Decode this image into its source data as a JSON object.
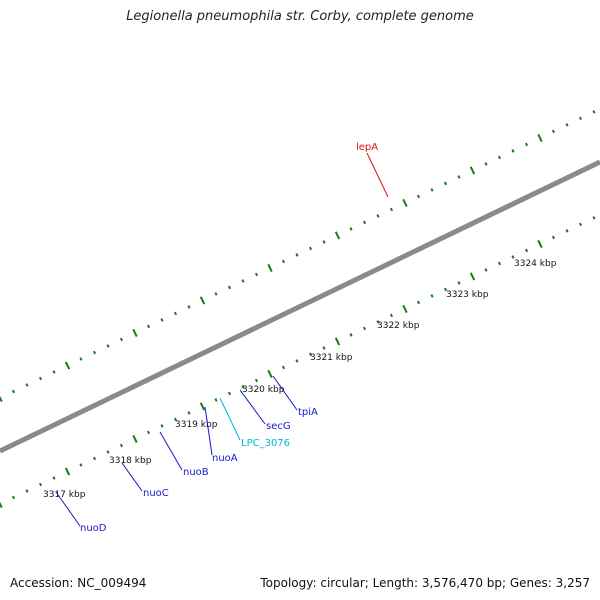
{
  "title": "Legionella pneumophila str. Corby, complete genome",
  "footer": {
    "accession": "Accession: NC_009494",
    "summary": "Topology: circular; Length: 3,576,470 bp; Genes: 3,257"
  },
  "colors": {
    "forward_cds": "#1010e0",
    "forward_gene": "#00d8ee",
    "selected_red": "#ee1111",
    "green_gene": "#8ce03a",
    "backbone": "#888888",
    "tick": "#1a7a1a",
    "label_blue": "#1818cc",
    "label_cyan": "#00b8d8",
    "label_red": "#dd1111"
  },
  "kbp_marks": [
    {
      "text": "3317 kbp"
    },
    {
      "text": "3318 kbp"
    },
    {
      "text": "3319 kbp"
    },
    {
      "text": "3320 kbp"
    },
    {
      "text": "3321 kbp"
    },
    {
      "text": "3322 kbp"
    },
    {
      "text": "3323 kbp"
    },
    {
      "text": "3324 kbp"
    }
  ],
  "gene_labels": [
    {
      "name": "nuoD",
      "color": "label_blue"
    },
    {
      "name": "nuoC",
      "color": "label_blue"
    },
    {
      "name": "nuoB",
      "color": "label_blue"
    },
    {
      "name": "nuoA",
      "color": "label_blue"
    },
    {
      "name": "LPC_3076",
      "color": "label_cyan"
    },
    {
      "name": "secG",
      "color": "label_blue"
    },
    {
      "name": "tpiA",
      "color": "label_blue"
    },
    {
      "name": "lepA",
      "color": "label_red"
    }
  ]
}
